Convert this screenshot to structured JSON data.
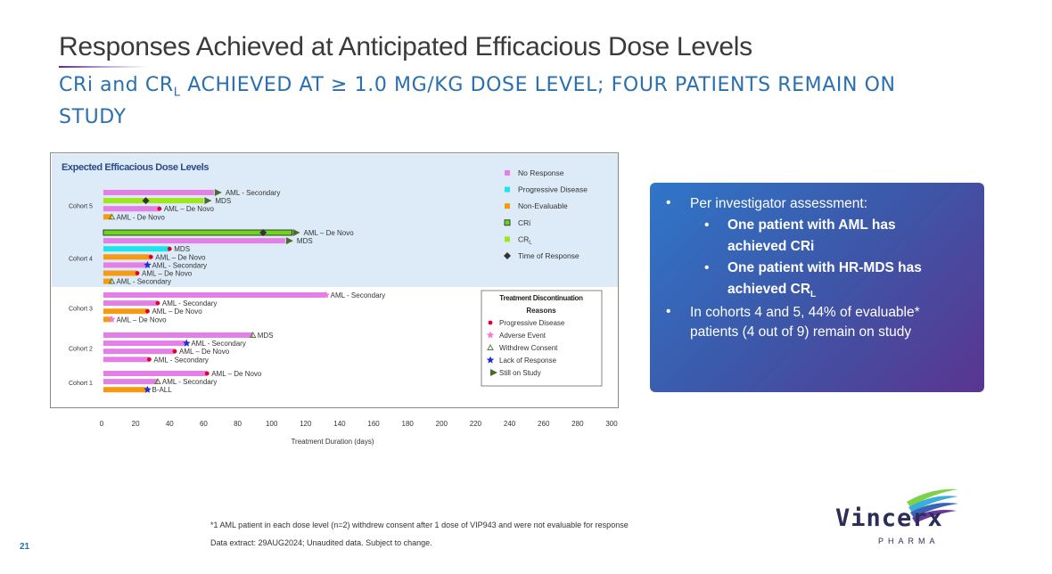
{
  "slide": {
    "title": "Responses Achieved at Anticipated Efficacious Dose Levels",
    "subtitle_pre": "CRi and CR",
    "subtitle_sub": "L",
    "subtitle_post": " ACHIEVED AT ≥ 1.0 MG/KG DOSE LEVEL; FOUR PATIENTS REMAIN ON STUDY",
    "page_number": "21",
    "footnote1": "*1 AML patient in each dose level (n=2) withdrew consent after 1 dose of VIP943 and were not evaluable for response",
    "footnote2": "Data extract: 29AUG2024; Unaudited data. Subject to change.",
    "logo_text": "Vincerx",
    "logo_sub": "PHARMA"
  },
  "callout": {
    "b1": "Per investigator assessment:",
    "b1a_l1": "One patient with AML has",
    "b1a_l2": "achieved CRi",
    "b1b_l1": "One patient with HR-MDS has",
    "b1b_l2_pre": "achieved CR",
    "b1b_l2_sub": "L",
    "b2_l1": "In cohorts 4 and 5, 44% of evaluable*",
    "b2_l2": "patients (4 out of 9) remain on study"
  },
  "colors": {
    "no_response": "#e37fe6",
    "progressive": "#1fe3eb",
    "non_evaluable": "#f59a12",
    "cri": "#6ed41e",
    "crl": "#9ee61e",
    "marker_pd": "#e0002a",
    "marker_ae": "#f27ad9",
    "marker_wc": "#4a7b2a",
    "marker_lr": "#1a2fd6",
    "marker_still": "#4e6a2a",
    "tor": "#333333",
    "highlight_bg": "#dcebf7"
  },
  "chart_data": {
    "type": "swimmer",
    "region_label": "Expected Efficacious Dose Levels",
    "xlabel": "Treatment Duration (days)",
    "xlim": [
      0,
      300
    ],
    "xticks": [
      0,
      20,
      40,
      60,
      80,
      100,
      120,
      140,
      160,
      180,
      200,
      220,
      240,
      260,
      280,
      300
    ],
    "legend": [
      {
        "key": "no_response",
        "label": "No Response",
        "shape": "square"
      },
      {
        "key": "progressive",
        "label": "Progressive Disease",
        "shape": "square"
      },
      {
        "key": "non_evaluable",
        "label": "Non-Evaluable",
        "shape": "square"
      },
      {
        "key": "cri",
        "label": "CRi",
        "shape": "square-outline"
      },
      {
        "key": "crl",
        "label": "CR",
        "label_sub": "L",
        "shape": "square"
      },
      {
        "key": "tor",
        "label": "Time of Response",
        "shape": "diamond"
      }
    ],
    "disc_legend_title_l1": "Treatment Discontinuation",
    "disc_legend_title_l2": "Reasons",
    "disc_legend": [
      {
        "key": "pd",
        "label": "Progressive Disease"
      },
      {
        "key": "ae",
        "label": "Adverse Event"
      },
      {
        "key": "wc",
        "label": "Withdrew Consent"
      },
      {
        "key": "lr",
        "label": "Lack of Response"
      },
      {
        "key": "still",
        "label": "Still on Study"
      }
    ],
    "cohorts": [
      {
        "name": "Cohort 5",
        "bars": [
          {
            "end": 66,
            "resp": "no_response",
            "marker": "still",
            "label": "AML - Secondary"
          },
          {
            "end": 60,
            "resp": "crl",
            "marker": "still",
            "tor": 26,
            "label": "MDS"
          },
          {
            "end": 34,
            "resp": "no_response",
            "marker": "pd",
            "label": "AML – De Novo"
          },
          {
            "end": 6,
            "resp": "non_evaluable",
            "marker": "wc",
            "label": "AML - De Novo"
          }
        ]
      },
      {
        "name": "Cohort 4",
        "bars": [
          {
            "end": 112,
            "resp": "cri",
            "marker": "still",
            "tor": 95,
            "label": "AML – De Novo"
          },
          {
            "end": 108,
            "resp": "no_response",
            "marker": "still",
            "label": "MDS"
          },
          {
            "end": 40,
            "resp": "progressive",
            "marker": "pd",
            "label": "MDS"
          },
          {
            "end": 29,
            "resp": "non_evaluable",
            "marker": "pd",
            "label": "AML – De Novo"
          },
          {
            "end": 27,
            "resp": "no_response",
            "marker": "lr",
            "label": "AML - Secondary"
          },
          {
            "end": 21,
            "resp": "non_evaluable",
            "marker": "pd",
            "label": "AML – De Novo"
          },
          {
            "end": 6,
            "resp": "non_evaluable",
            "marker": "wc",
            "label": "AML - Secondary"
          }
        ]
      },
      {
        "name": "Cohort 3",
        "bars": [
          {
            "end": 132,
            "resp": "no_response",
            "marker": "ae",
            "label": "AML - Secondary"
          },
          {
            "end": 33,
            "resp": "no_response",
            "marker": "pd",
            "label": "AML - Secondary"
          },
          {
            "end": 27,
            "resp": "non_evaluable",
            "marker": "pd",
            "label": "AML – De Novo"
          },
          {
            "end": 6,
            "resp": "non_evaluable",
            "marker": "ae",
            "label": "AML – De Novo"
          }
        ]
      },
      {
        "name": "Cohort 2",
        "bars": [
          {
            "end": 89,
            "resp": "no_response",
            "marker": "wc",
            "label": "MDS"
          },
          {
            "end": 50,
            "resp": "no_response",
            "marker": "lr",
            "label": "AML - Secondary"
          },
          {
            "end": 43,
            "resp": "no_response",
            "marker": "pd",
            "label": "AML – De Novo"
          },
          {
            "end": 28,
            "resp": "no_response",
            "marker": "pd",
            "label": "AML - Secondary"
          }
        ]
      },
      {
        "name": "Cohort 1",
        "bars": [
          {
            "end": 62,
            "resp": "no_response",
            "marker": "pd",
            "label": "AML – De Novo"
          },
          {
            "end": 33,
            "resp": "no_response",
            "marker": "wc",
            "label": "AML - Secondary"
          },
          {
            "end": 27,
            "resp": "non_evaluable",
            "marker": "lr",
            "label": "B-ALL"
          }
        ]
      }
    ]
  }
}
